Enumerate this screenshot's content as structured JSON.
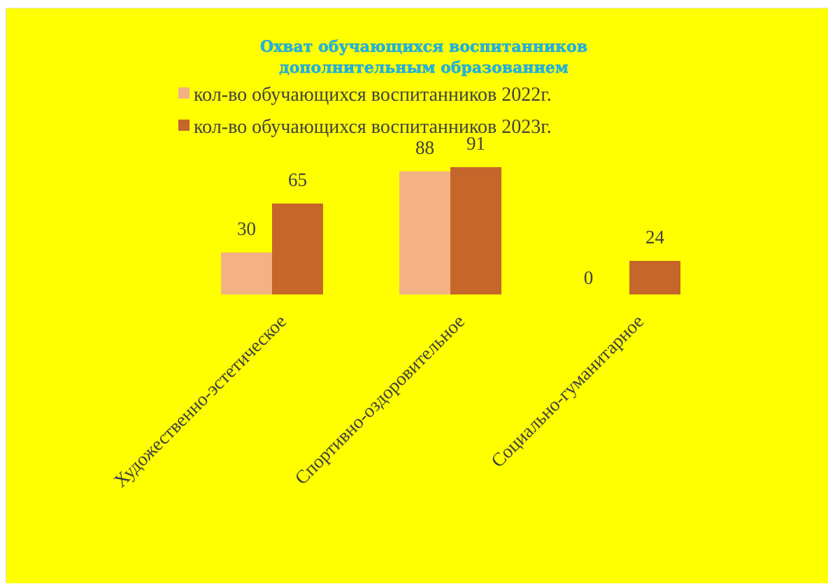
{
  "chart_data": {
    "type": "bar",
    "title": "Охват обучающихся воспитанников дополнительным образованием",
    "title_lines": [
      "Охват обучающихся воспитанников",
      "дополнительным образованием"
    ],
    "categories": [
      "Художественно-эстетическое",
      "Спортивно-оздоровительное",
      "Социально-гуманитарное"
    ],
    "series": [
      {
        "name": "кол-во обучающихся воспитанников 2022г.",
        "values": [
          30,
          88,
          0
        ],
        "color": "#f4b183"
      },
      {
        "name": "кол-во обучающихся воспитанников 2023г.",
        "values": [
          65,
          91,
          24
        ],
        "color": "#c5662a"
      }
    ],
    "xlabel": "",
    "ylabel": "",
    "ylim": [
      0,
      100
    ],
    "grid": false,
    "legend_position": "top",
    "data_labels": true,
    "background_color": "#ffff00",
    "title_color": "#1fb5e8",
    "text_color": "#404040"
  }
}
